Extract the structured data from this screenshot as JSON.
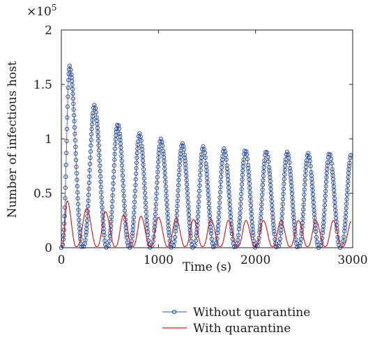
{
  "chart_data": {
    "type": "line",
    "title": "",
    "xlabel": "Time (s)",
    "ylabel": "Number of infectious host",
    "y_multiplier_base": "×10",
    "y_multiplier_exp": "5",
    "xlim": [
      0,
      3000
    ],
    "ylim": [
      0,
      2
    ],
    "xticks": [
      0,
      1000,
      2000,
      3000
    ],
    "xtick_labels": [
      "0",
      "1000",
      "2000",
      "3000"
    ],
    "yticks": [
      0,
      0.5,
      1,
      1.5,
      2
    ],
    "ytick_labels": [
      "0",
      "0.5",
      "1",
      "1.5",
      "2"
    ],
    "grid": false,
    "legend_position": "bottom-left, below plot",
    "series": [
      {
        "name": "Without quarantine",
        "color": "#2e4fa0",
        "marker": "circle",
        "peaks": [
          {
            "x": 85,
            "y": 1.67
          },
          {
            "x": 340,
            "y": 1.31
          },
          {
            "x": 580,
            "y": 1.14
          },
          {
            "x": 805,
            "y": 1.05
          },
          {
            "x": 1025,
            "y": 1.0
          },
          {
            "x": 1245,
            "y": 0.96
          },
          {
            "x": 1460,
            "y": 0.93
          },
          {
            "x": 1675,
            "y": 0.91
          },
          {
            "x": 1895,
            "y": 0.9
          },
          {
            "x": 2110,
            "y": 0.89
          },
          {
            "x": 2325,
            "y": 0.88
          },
          {
            "x": 2540,
            "y": 0.87
          },
          {
            "x": 2760,
            "y": 0.87
          },
          {
            "x": 2985,
            "y": 0.86
          }
        ],
        "troughs": [
          {
            "x": 0,
            "y": 0
          },
          {
            "x": 215,
            "y": 0
          },
          {
            "x": 465,
            "y": 0
          },
          {
            "x": 695,
            "y": 0
          },
          {
            "x": 915,
            "y": 0
          },
          {
            "x": 1135,
            "y": 0
          },
          {
            "x": 1355,
            "y": 0
          },
          {
            "x": 1570,
            "y": 0
          },
          {
            "x": 1785,
            "y": 0
          },
          {
            "x": 2000,
            "y": 0
          },
          {
            "x": 2220,
            "y": 0
          },
          {
            "x": 2435,
            "y": 0
          },
          {
            "x": 2650,
            "y": 0
          },
          {
            "x": 2870,
            "y": 0
          }
        ]
      },
      {
        "name": "With quarantine",
        "color": "#d42020",
        "marker": "none",
        "peaks": [
          {
            "x": 60,
            "y": 0.43
          },
          {
            "x": 260,
            "y": 0.36
          },
          {
            "x": 455,
            "y": 0.33
          },
          {
            "x": 640,
            "y": 0.3
          },
          {
            "x": 820,
            "y": 0.29
          },
          {
            "x": 1000,
            "y": 0.28
          },
          {
            "x": 1180,
            "y": 0.27
          },
          {
            "x": 1360,
            "y": 0.26
          },
          {
            "x": 1540,
            "y": 0.26
          },
          {
            "x": 1720,
            "y": 0.25
          },
          {
            "x": 1900,
            "y": 0.25
          },
          {
            "x": 2080,
            "y": 0.25
          },
          {
            "x": 2260,
            "y": 0.25
          },
          {
            "x": 2440,
            "y": 0.25
          },
          {
            "x": 2620,
            "y": 0.25
          },
          {
            "x": 2800,
            "y": 0.25
          },
          {
            "x": 2985,
            "y": 0.24
          }
        ],
        "troughs": [
          {
            "x": 0,
            "y": 0.0
          },
          {
            "x": 150,
            "y": 0.01
          },
          {
            "x": 360,
            "y": 0.01
          },
          {
            "x": 550,
            "y": 0.01
          },
          {
            "x": 730,
            "y": 0.01
          },
          {
            "x": 910,
            "y": 0.01
          },
          {
            "x": 1090,
            "y": 0.01
          },
          {
            "x": 1270,
            "y": 0.01
          },
          {
            "x": 1450,
            "y": 0.01
          },
          {
            "x": 1630,
            "y": 0.01
          },
          {
            "x": 1810,
            "y": 0.01
          },
          {
            "x": 1990,
            "y": 0.01
          },
          {
            "x": 2170,
            "y": 0.01
          },
          {
            "x": 2350,
            "y": 0.01
          },
          {
            "x": 2530,
            "y": 0.01
          },
          {
            "x": 2710,
            "y": 0.01
          },
          {
            "x": 2890,
            "y": 0.01
          }
        ]
      }
    ]
  }
}
